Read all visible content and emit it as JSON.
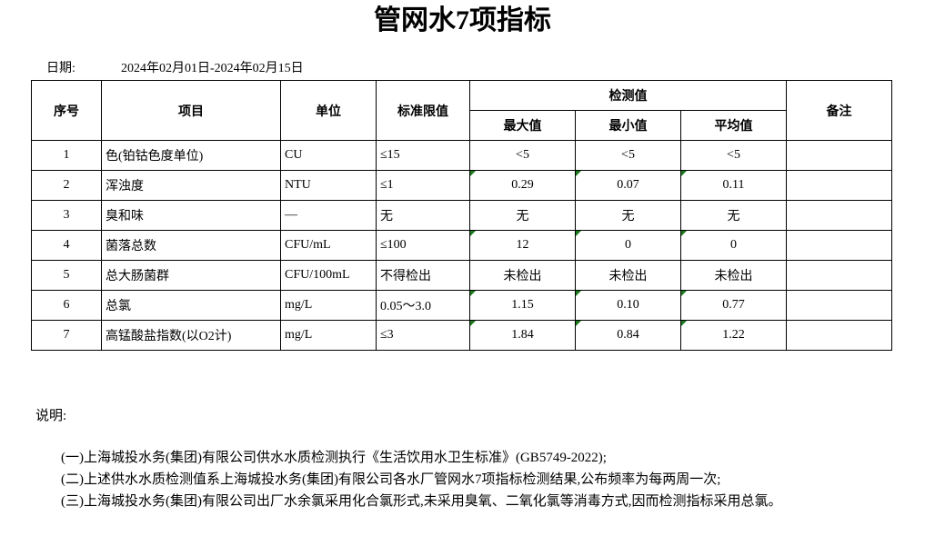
{
  "title": "管网水7项指标",
  "date": {
    "label": "日期:",
    "value": "2024年02月01日-2024年02月15日"
  },
  "headers": {
    "seq": "序号",
    "item": "项目",
    "unit": "单位",
    "limit": "标准限值",
    "measured": "检测值",
    "max": "最大值",
    "min": "最小值",
    "avg": "平均值",
    "remark": "备注"
  },
  "rows": [
    {
      "seq": "1",
      "item": "色(铂钴色度单位)",
      "unit": "CU",
      "limit": "≤15",
      "max": "<5",
      "min": "<5",
      "avg": "<5",
      "flag": false
    },
    {
      "seq": "2",
      "item": "浑浊度",
      "unit": "NTU",
      "limit": "≤1",
      "max": "0.29",
      "min": "0.07",
      "avg": "0.11",
      "flag": true
    },
    {
      "seq": "3",
      "item": "臭和味",
      "unit": "—",
      "limit": "无",
      "max": "无",
      "min": "无",
      "avg": "无",
      "flag": false
    },
    {
      "seq": "4",
      "item": "菌落总数",
      "unit": "CFU/mL",
      "limit": "≤100",
      "max": "12",
      "min": "0",
      "avg": "0",
      "flag": true
    },
    {
      "seq": "5",
      "item": "总大肠菌群",
      "unit": "CFU/100mL",
      "limit": "不得检出",
      "max": "未检出",
      "min": "未检出",
      "avg": "未检出",
      "flag": false
    },
    {
      "seq": "6",
      "item": "总氯",
      "unit": "mg/L",
      "limit": "0.05～3.0",
      "max": "1.15",
      "min": "0.10",
      "avg": "0.77",
      "flag": true
    },
    {
      "seq": "7",
      "item": "高锰酸盐指数(以O2计)",
      "unit": "mg/L",
      "limit": "≤3",
      "max": "1.84",
      "min": "0.84",
      "avg": "1.22",
      "flag": true
    }
  ],
  "notes": {
    "heading": "说明:",
    "lines": [
      "(一)上海城投水务(集团)有限公司供水水质检测执行《生活饮用水卫生标准》(GB5749-2022);",
      "(二)上述供水水质检测值系上海城投水务(集团)有限公司各水厂管网水7项指标检测结果,公布频率为每两周一次;",
      "(三)上海城投水务(集团)有限公司出厂水余氯采用化合氯形式,未采用臭氧、二氧化氯等消毒方式,因而检测指标采用总氯。"
    ]
  },
  "colors": {
    "error_indicator": "#1a7a1a"
  }
}
